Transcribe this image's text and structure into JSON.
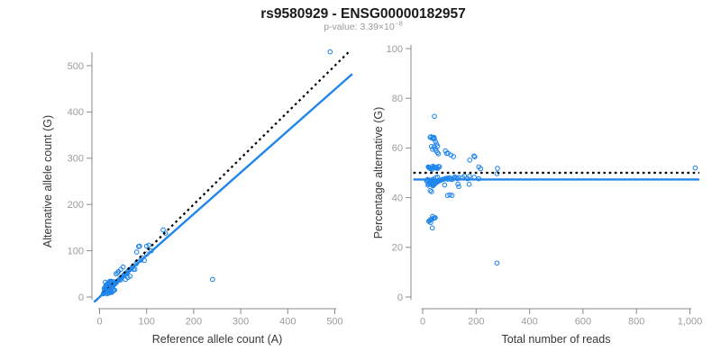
{
  "title": "rs9580929 - ENSG00000182957",
  "subtitle": {
    "base": "p-value: 3.39×10",
    "exponent": "−8"
  },
  "colors": {
    "accent_blue": "#2186eb",
    "identity_black": "#000000",
    "axis_gray": "#8a8a8a",
    "tick_label_gray": "#9c9c9c",
    "axis_title_gray": "#383838",
    "title_black": "#1a1a1a",
    "subtitle_gray": "#9a9a9a",
    "background": "#ffffff"
  },
  "chart_data": {
    "type": "scatter",
    "samples_format": "[reference_allele_count_A, alternative_allele_count_G]",
    "samples": [
      [
        8,
        7
      ],
      [
        9,
        8
      ],
      [
        10,
        9
      ],
      [
        10,
        11
      ],
      [
        11,
        9
      ],
      [
        11,
        12
      ],
      [
        12,
        10
      ],
      [
        12,
        13
      ],
      [
        13,
        11
      ],
      [
        13,
        14
      ],
      [
        14,
        12
      ],
      [
        14,
        15
      ],
      [
        15,
        13
      ],
      [
        15,
        16
      ],
      [
        16,
        14
      ],
      [
        16,
        12
      ],
      [
        17,
        15
      ],
      [
        17,
        18
      ],
      [
        18,
        15
      ],
      [
        18,
        20
      ],
      [
        19,
        17
      ],
      [
        19,
        14
      ],
      [
        20,
        18
      ],
      [
        20,
        22
      ],
      [
        21,
        17
      ],
      [
        21,
        23
      ],
      [
        22,
        18
      ],
      [
        22,
        24
      ],
      [
        23,
        19
      ],
      [
        23,
        25
      ],
      [
        24,
        20
      ],
      [
        24,
        26
      ],
      [
        25,
        21
      ],
      [
        25,
        27
      ],
      [
        26,
        22
      ],
      [
        26,
        24
      ],
      [
        27,
        23
      ],
      [
        27,
        29
      ],
      [
        28,
        24
      ],
      [
        28,
        31
      ],
      [
        29,
        25
      ],
      [
        29,
        27
      ],
      [
        30,
        26
      ],
      [
        30,
        33
      ],
      [
        31,
        27
      ],
      [
        32,
        28
      ],
      [
        33,
        29
      ],
      [
        34,
        30
      ],
      [
        35,
        31
      ],
      [
        36,
        32
      ],
      [
        16,
        7
      ],
      [
        18,
        8
      ],
      [
        20,
        9
      ],
      [
        22,
        10
      ],
      [
        25,
        12
      ],
      [
        26,
        10
      ],
      [
        30,
        14
      ],
      [
        28,
        13
      ],
      [
        24,
        11
      ],
      [
        32,
        15
      ],
      [
        21,
        9
      ],
      [
        12,
        32
      ],
      [
        15,
        27
      ],
      [
        14,
        25
      ],
      [
        13,
        23
      ],
      [
        16,
        28
      ],
      [
        18,
        30
      ],
      [
        20,
        32
      ],
      [
        22,
        34
      ],
      [
        17,
        26
      ],
      [
        19,
        28
      ],
      [
        21,
        30
      ],
      [
        23,
        32
      ],
      [
        25,
        34
      ],
      [
        11,
        20
      ],
      [
        10,
        18
      ],
      [
        13,
        20
      ],
      [
        15,
        22
      ],
      [
        40,
        36
      ],
      [
        42,
        38
      ],
      [
        44,
        40
      ],
      [
        45,
        37
      ],
      [
        46,
        42
      ],
      [
        48,
        44
      ],
      [
        50,
        45
      ],
      [
        52,
        48
      ],
      [
        55,
        50
      ],
      [
        55,
        38
      ],
      [
        58,
        52
      ],
      [
        60,
        55
      ],
      [
        60,
        42
      ],
      [
        62,
        58
      ],
      [
        65,
        60
      ],
      [
        65,
        45
      ],
      [
        68,
        62
      ],
      [
        70,
        65
      ],
      [
        72,
        60
      ],
      [
        75,
        60
      ],
      [
        78,
        72
      ],
      [
        80,
        76
      ],
      [
        85,
        110
      ],
      [
        88,
        80
      ],
      [
        90,
        85
      ],
      [
        95,
        79
      ],
      [
        100,
        93
      ],
      [
        105,
        112
      ],
      [
        110,
        100
      ],
      [
        135,
        145
      ],
      [
        140,
        138
      ],
      [
        83,
        109
      ],
      [
        79,
        97
      ],
      [
        100,
        110
      ],
      [
        45,
        60
      ],
      [
        50,
        65
      ],
      [
        40,
        55
      ],
      [
        35,
        50
      ],
      [
        38,
        52
      ],
      [
        240,
        38
      ],
      [
        490,
        530
      ]
    ],
    "panels": [
      {
        "id": "counts",
        "type": "scatter",
        "xlabel": "Reference allele count (A)",
        "ylabel": "Alternative allele count (G)",
        "xticks": {
          "values": [
            0,
            100,
            200,
            300,
            400,
            500
          ],
          "labels": [
            "0",
            "100",
            "200",
            "300",
            "400",
            "500"
          ]
        },
        "yticks": {
          "values": [
            0,
            100,
            200,
            300,
            400,
            500
          ],
          "labels": [
            "0",
            "100",
            "200",
            "300",
            "400",
            "500"
          ]
        },
        "xlim": [
          -15,
          545
        ],
        "ylim": [
          -15,
          545
        ],
        "grid": false,
        "points": "samples",
        "lines": [
          {
            "style": "dotted",
            "role": "identity",
            "from": [
              -8,
              -8
            ],
            "to": [
              532,
              532
            ]
          },
          {
            "style": "solid",
            "role": "fit",
            "from": [
              -12,
              -11
            ],
            "to": [
              537,
              482
            ]
          }
        ]
      },
      {
        "id": "percentage",
        "type": "scatter",
        "xlabel": "Total number of reads",
        "ylabel": "Percentage alternative (G)",
        "xticks": {
          "values": [
            0,
            200,
            400,
            600,
            800,
            1000
          ],
          "labels": [
            "0",
            "200",
            "400",
            "600",
            "800",
            "1,000"
          ]
        },
        "yticks": {
          "values": [
            0,
            20,
            40,
            60,
            80,
            100
          ],
          "labels": [
            "0",
            "20",
            "40",
            "60",
            "80",
            "100"
          ]
        },
        "xlim": [
          -40,
          1060
        ],
        "ylim": [
          0,
          100
        ],
        "grid": false,
        "points": "derived: x = ref+alt, y = 100*alt/(ref+alt)",
        "lines": [
          {
            "style": "dotted",
            "role": "expected-50pct",
            "from": [
              -35,
              50
            ],
            "to": [
              1035,
              50
            ]
          },
          {
            "style": "solid",
            "role": "fit",
            "from": [
              -35,
              47.3
            ],
            "to": [
              1035,
              47.3
            ]
          }
        ]
      }
    ]
  }
}
